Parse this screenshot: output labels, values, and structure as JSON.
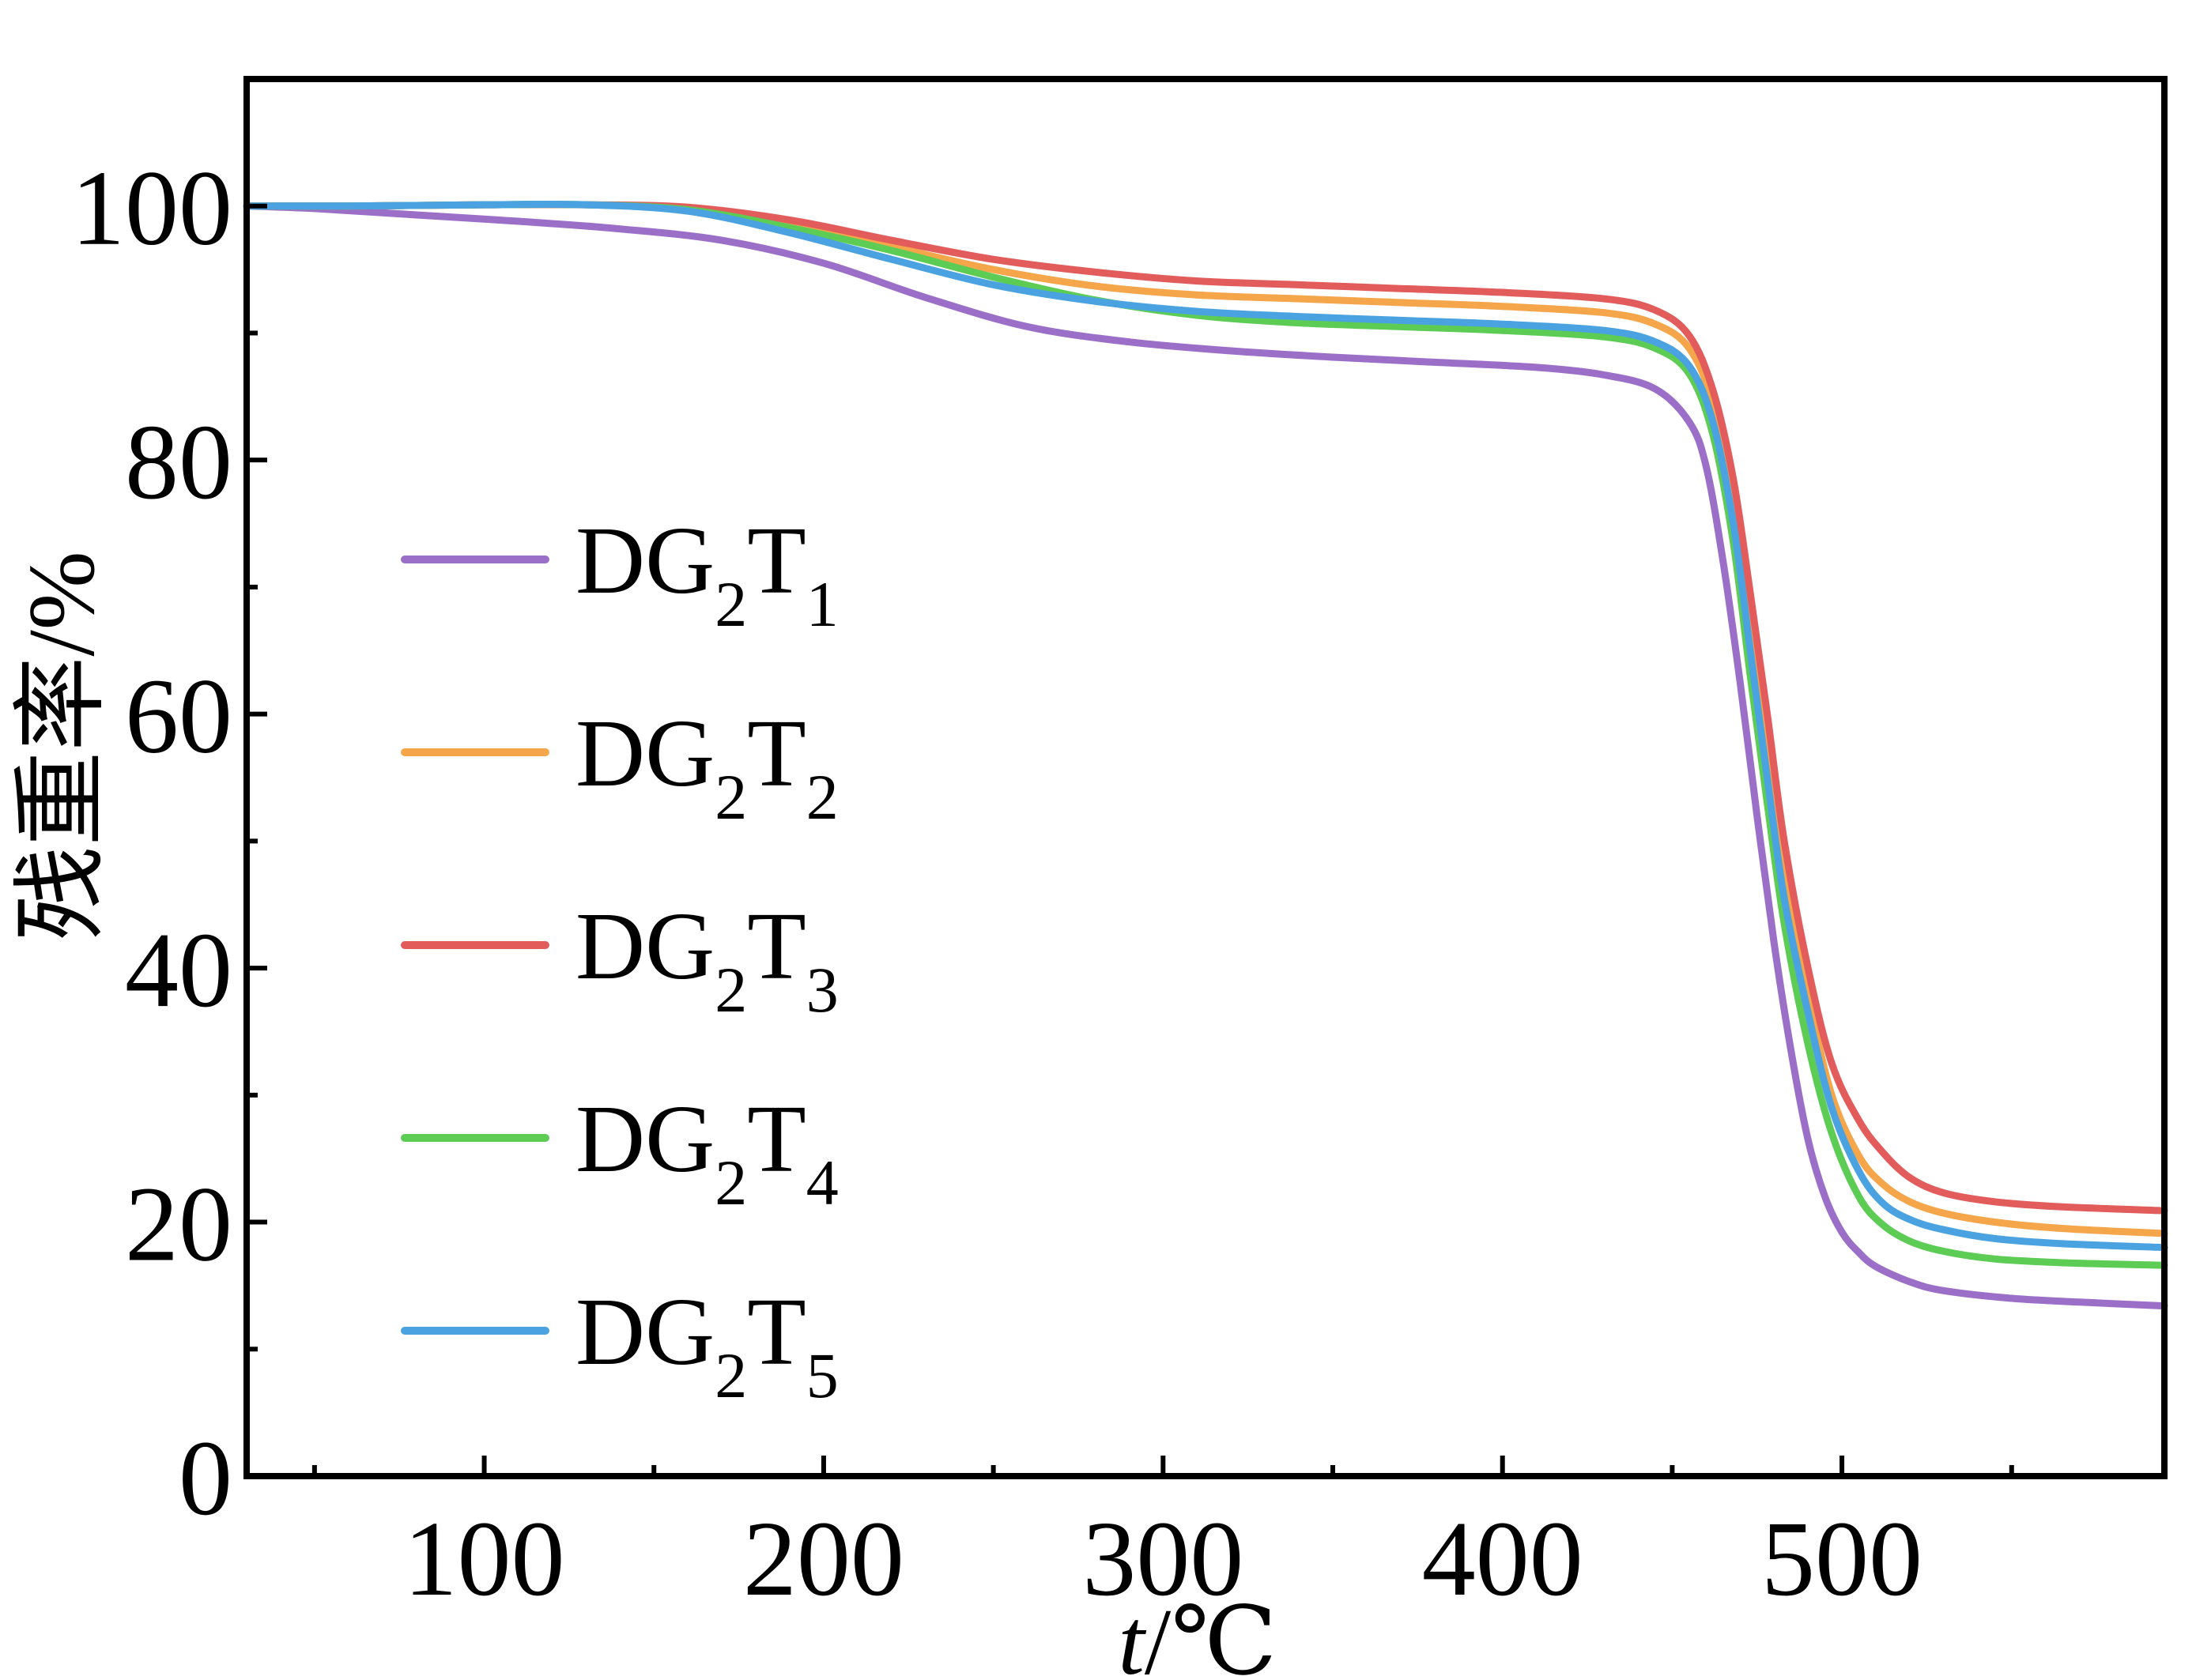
{
  "chart_data": {
    "type": "line",
    "xlabel": "t/℃",
    "xlabel_var": "t",
    "xlabel_unit": "/℃",
    "ylabel": "残重率/%",
    "xlim": [
      30,
      595
    ],
    "ylim": [
      0,
      110
    ],
    "xticks": [
      100,
      200,
      300,
      400,
      500
    ],
    "xticks_minor": [
      50,
      150,
      250,
      350,
      450,
      550
    ],
    "yticks": [
      0,
      20,
      40,
      60,
      80,
      100
    ],
    "yticks_minor": [
      10,
      30,
      50,
      70,
      90
    ],
    "grid": false,
    "legend_position": "left",
    "series": [
      {
        "name": "DG2T1",
        "label_main": "DG",
        "label_sub1": "2",
        "label_t": "T",
        "label_sub2": "1",
        "color": "#9b6fc8",
        "x": [
          30,
          50,
          80,
          110,
          140,
          170,
          200,
          230,
          260,
          290,
          320,
          350,
          380,
          410,
          430,
          445,
          455,
          460,
          465,
          470,
          475,
          480,
          485,
          490,
          495,
          500,
          505,
          510,
          520,
          530,
          550,
          570,
          595
        ],
        "y": [
          100,
          99.8,
          99.3,
          98.8,
          98.2,
          97.3,
          95.5,
          92.8,
          90.5,
          89.3,
          88.6,
          88.1,
          87.7,
          87.3,
          86.7,
          85.6,
          83.0,
          79.5,
          72.0,
          62.5,
          52.0,
          42.0,
          33.5,
          26.5,
          22.0,
          19.2,
          17.6,
          16.5,
          15.3,
          14.6,
          14.0,
          13.7,
          13.4
        ]
      },
      {
        "name": "DG2T2",
        "label_main": "DG",
        "label_sub1": "2",
        "label_t": "T",
        "label_sub2": "2",
        "color": "#f5a54a",
        "x": [
          30,
          60,
          100,
          130,
          160,
          190,
          220,
          250,
          280,
          310,
          340,
          370,
          400,
          430,
          445,
          455,
          462,
          468,
          473,
          478,
          483,
          490,
          497,
          505,
          512,
          520,
          530,
          545,
          565,
          595
        ],
        "y": [
          100,
          100,
          100.1,
          100.1,
          99.8,
          98.6,
          96.8,
          95.0,
          93.7,
          93.0,
          92.7,
          92.4,
          92.1,
          91.6,
          90.7,
          88.8,
          84.5,
          77.0,
          68.0,
          58.5,
          48.5,
          38.0,
          30.0,
          25.2,
          23.0,
          21.6,
          20.7,
          20.0,
          19.5,
          19.1
        ]
      },
      {
        "name": "DG2T3",
        "label_main": "DG",
        "label_sub1": "2",
        "label_t": "T",
        "label_sub2": "3",
        "color": "#e25c5c",
        "x": [
          30,
          60,
          100,
          130,
          160,
          190,
          220,
          250,
          280,
          310,
          340,
          370,
          400,
          430,
          445,
          455,
          462,
          468,
          473,
          478,
          483,
          490,
          497,
          505,
          512,
          520,
          530,
          545,
          565,
          595
        ],
        "y": [
          100,
          100,
          100.1,
          100.1,
          99.9,
          98.9,
          97.3,
          95.8,
          94.8,
          94.1,
          93.8,
          93.5,
          93.2,
          92.7,
          91.8,
          89.8,
          85.5,
          78.5,
          69.5,
          60.0,
          50.0,
          40.0,
          32.5,
          28.0,
          25.5,
          23.5,
          22.3,
          21.6,
          21.2,
          20.9
        ]
      },
      {
        "name": "DG2T4",
        "label_main": "DG",
        "label_sub1": "2",
        "label_t": "T",
        "label_sub2": "4",
        "color": "#5ccc55",
        "x": [
          30,
          60,
          100,
          130,
          160,
          190,
          220,
          250,
          280,
          310,
          340,
          370,
          400,
          430,
          445,
          455,
          462,
          468,
          473,
          478,
          483,
          490,
          497,
          505,
          512,
          520,
          530,
          545,
          565,
          595
        ],
        "y": [
          100,
          100,
          100.1,
          100.1,
          99.7,
          98.3,
          96.5,
          94.4,
          92.6,
          91.4,
          90.8,
          90.5,
          90.2,
          89.7,
          88.8,
          86.8,
          82.0,
          73.5,
          63.0,
          53.0,
          43.5,
          34.0,
          27.0,
          22.0,
          19.8,
          18.5,
          17.7,
          17.1,
          16.8,
          16.6
        ]
      },
      {
        "name": "DG2T5",
        "label_main": "DG",
        "label_sub1": "2",
        "label_t": "T",
        "label_sub2": "5",
        "color": "#4aa3e0",
        "x": [
          30,
          60,
          100,
          130,
          160,
          190,
          220,
          250,
          280,
          310,
          340,
          370,
          400,
          430,
          445,
          455,
          462,
          468,
          473,
          478,
          483,
          490,
          497,
          505,
          512,
          520,
          530,
          545,
          565,
          595
        ],
        "y": [
          100,
          100,
          100.1,
          100.1,
          99.6,
          97.9,
          95.8,
          93.8,
          92.5,
          91.7,
          91.3,
          91.0,
          90.7,
          90.2,
          89.3,
          87.4,
          83.0,
          75.0,
          65.0,
          55.0,
          45.5,
          36.5,
          29.0,
          24.0,
          21.5,
          20.2,
          19.4,
          18.7,
          18.3,
          18.0
        ]
      }
    ]
  }
}
